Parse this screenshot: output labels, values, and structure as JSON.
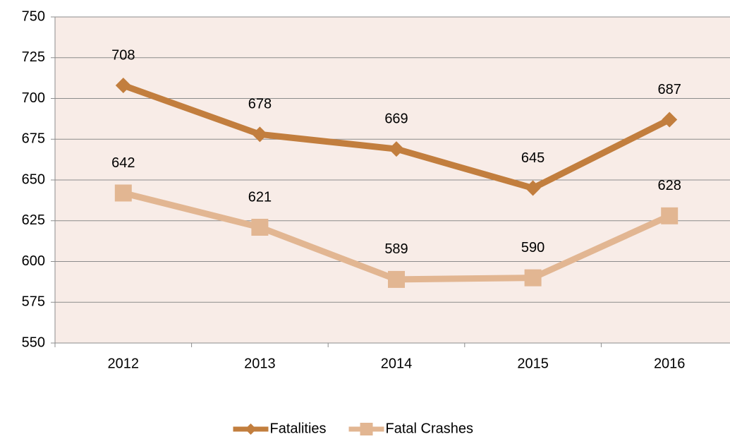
{
  "chart_data": {
    "type": "line",
    "categories": [
      "2012",
      "2013",
      "2014",
      "2015",
      "2016"
    ],
    "series": [
      {
        "name": "Fatalities",
        "color": "#c27e3e",
        "marker": "diamond",
        "values": [
          708,
          678,
          669,
          645,
          687
        ]
      },
      {
        "name": "Fatal Crashes",
        "color": "#e2b692",
        "marker": "square",
        "values": [
          642,
          621,
          589,
          590,
          628
        ]
      }
    ],
    "ylim": [
      550,
      750
    ],
    "yticks": [
      550,
      575,
      600,
      625,
      650,
      675,
      700,
      725,
      750
    ],
    "grid": true,
    "legend": "bottom"
  }
}
